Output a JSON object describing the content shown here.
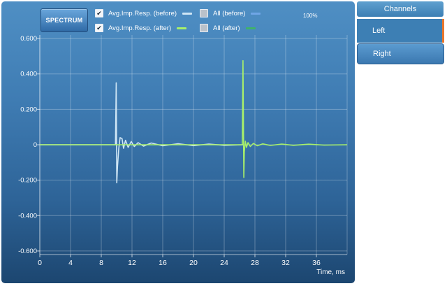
{
  "toolbar": {
    "spectrum_label": "SPECTRUM",
    "zoom_label": "100%"
  },
  "legend": [
    {
      "label": "Avg.Imp.Resp. (before)",
      "checked": true,
      "color": "#cfe6f5"
    },
    {
      "label": "Avg.Imp.Resp. (after)",
      "checked": true,
      "color": "#a8f06a"
    },
    {
      "label": "All (before)",
      "checked": false,
      "color": "#6fa6e6"
    },
    {
      "label": "All (after)",
      "checked": false,
      "color": "#3fb26a"
    }
  ],
  "sidebar": {
    "header": "Channels",
    "items": [
      {
        "label": "Left",
        "active": true
      },
      {
        "label": "Right",
        "active": false
      }
    ]
  },
  "chart_data": {
    "type": "line",
    "xlabel": "Time, ms",
    "ylabel": "",
    "xlim": [
      0,
      40
    ],
    "ylim": [
      -0.62,
      0.62
    ],
    "xticks": [
      0,
      4,
      8,
      12,
      16,
      20,
      24,
      28,
      32,
      36
    ],
    "xtick_labels": [
      "0",
      "4",
      "8",
      "12",
      "16",
      "20",
      "24",
      "28",
      "32",
      "36"
    ],
    "yticks": [
      0.6,
      0.4,
      0.2,
      0,
      -0.2,
      -0.4,
      -0.6
    ],
    "ytick_labels": [
      "0.600",
      "0.400",
      "0.200",
      "0",
      "-0.200",
      "-0.400",
      "-0.600"
    ],
    "grid": true,
    "series": [
      {
        "name": "Avg.Imp.Resp. (before)",
        "color": "#cfe6f5",
        "x": [
          0,
          9.85,
          9.95,
          10.02,
          10.12,
          10.28,
          10.45,
          10.7,
          10.9,
          11.15,
          11.5,
          11.9,
          12.3,
          12.8,
          13.5,
          14.5,
          16,
          18,
          20,
          22,
          24,
          26.5
        ],
        "y": [
          0,
          0,
          0.35,
          -0.215,
          -0.12,
          -0.02,
          0.04,
          0.035,
          -0.02,
          0.025,
          -0.015,
          0.018,
          -0.01,
          0.012,
          -0.008,
          0.01,
          -0.006,
          0.006,
          -0.005,
          0.004,
          -0.003,
          0
        ]
      },
      {
        "name": "Avg.Imp.Resp. (after)",
        "color": "#a8f06a",
        "x": [
          0,
          26.35,
          26.45,
          26.55,
          26.62,
          26.75,
          26.9,
          27.1,
          27.4,
          27.8,
          28.3,
          29,
          30,
          31.5,
          33,
          35,
          37,
          40
        ],
        "y": [
          0,
          0,
          0.475,
          -0.185,
          -0.04,
          0.02,
          -0.015,
          0.012,
          -0.01,
          0.008,
          -0.006,
          0.005,
          -0.004,
          0.004,
          -0.003,
          0.003,
          -0.002,
          0
        ]
      }
    ]
  }
}
